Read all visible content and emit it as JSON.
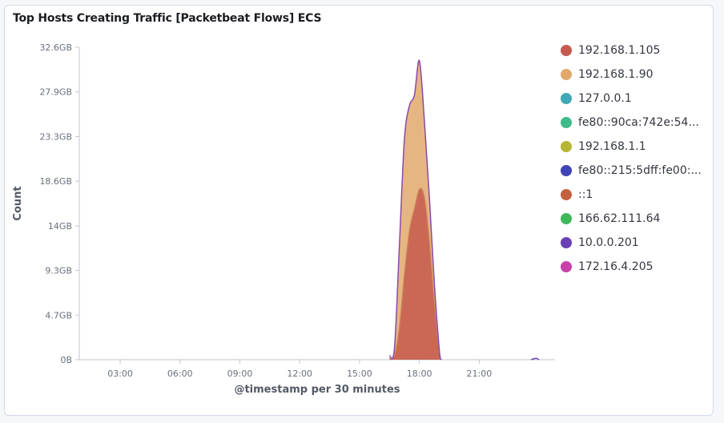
{
  "panel": {
    "title": "Top Hosts Creating Traffic [Packetbeat Flows] ECS"
  },
  "chart_data": {
    "type": "area",
    "title": "Top Hosts Creating Traffic [Packetbeat Flows] ECS",
    "xlabel": "@timestamp per 30 minutes",
    "ylabel": "Count",
    "x_ticks": [
      "03:00",
      "06:00",
      "09:00",
      "12:00",
      "15:00",
      "18:00",
      "21:00"
    ],
    "y_ticks": [
      "0B",
      "4.7GB",
      "9.3GB",
      "14GB",
      "18.6GB",
      "23.3GB",
      "27.9GB",
      "32.6GB"
    ],
    "y_unit": "GB",
    "ylim": [
      0,
      32.6
    ],
    "x_unit": "hours",
    "xlim": [
      0.95,
      24.8
    ],
    "stacked": true,
    "legend_position": "right",
    "series": [
      {
        "name": "192.168.1.105",
        "color": "#c65a4e",
        "x": [
          16.5,
          16.75,
          17.0,
          17.25,
          17.5,
          17.75,
          18.0,
          18.25,
          18.5,
          18.75,
          19.0,
          19.1
        ],
        "values": [
          0.1,
          0.5,
          3.5,
          9.0,
          13.5,
          15.8,
          17.8,
          17.0,
          12.5,
          6.0,
          0.8,
          0
        ]
      },
      {
        "name": "192.168.1.90",
        "color": "#e0a96b",
        "x": [
          16.5,
          16.75,
          17.0,
          17.25,
          17.5,
          17.75,
          18.0,
          18.25,
          18.5,
          18.75,
          19.0,
          19.1
        ],
        "values": [
          0.3,
          0.7,
          8.5,
          14.0,
          13.0,
          11.8,
          13.4,
          8.0,
          4.5,
          2.0,
          0.2,
          0
        ]
      },
      {
        "name": "127.0.0.1",
        "color": "#3fa9b5",
        "x": [],
        "values": []
      },
      {
        "name": "fe80::90ca:742e:54...",
        "color": "#3dbb8a",
        "x": [],
        "values": []
      },
      {
        "name": "192.168.1.1",
        "color": "#b5b635",
        "x": [],
        "values": []
      },
      {
        "name": "fe80::215:5dff:fe00:...",
        "color": "#3f44b6",
        "x": [],
        "values": []
      },
      {
        "name": "::1",
        "color": "#c3613f",
        "x": [],
        "values": []
      },
      {
        "name": "166.62.111.64",
        "color": "#3fb85a",
        "x": [],
        "values": []
      },
      {
        "name": "10.0.0.201",
        "color": "#6940b5",
        "x": [
          23.6,
          23.85,
          24.0
        ],
        "values": [
          0,
          0.15,
          0
        ]
      },
      {
        "name": "172.16.4.205",
        "color": "#c941a8",
        "x": [],
        "values": []
      }
    ]
  }
}
